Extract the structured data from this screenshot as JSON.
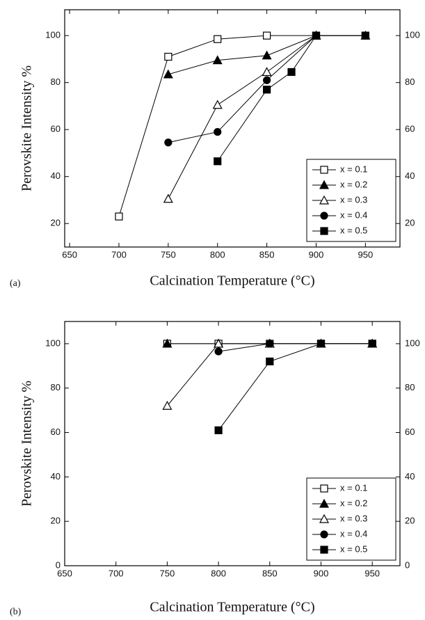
{
  "chart_data": [
    {
      "type": "line",
      "panel_label": "(a)",
      "x_label": "Calcination Temperature (°C)",
      "y_label": "Perovskite Intensity %",
      "xlim": [
        645,
        985
      ],
      "xticks": [
        650,
        700,
        750,
        800,
        850,
        900,
        950
      ],
      "ylim": [
        10,
        111
      ],
      "yticks": [
        20,
        40,
        60,
        80,
        100
      ],
      "y2lim": [
        10,
        111
      ],
      "y2ticks": [
        20,
        40,
        60,
        80,
        100
      ],
      "legend": "lower right",
      "series": [
        {
          "name": "x = 0.1",
          "color": "#000000",
          "marker": "square-open",
          "x": [
            700,
            750,
            800,
            850,
            900,
            950
          ],
          "values": [
            23,
            91,
            98.5,
            100,
            100,
            100
          ]
        },
        {
          "name": "x = 0.2",
          "color": "#000000",
          "marker": "triangle-filled",
          "x": [
            750,
            800,
            850,
            900,
            950
          ],
          "values": [
            83.5,
            89.5,
            91.5,
            100,
            100
          ]
        },
        {
          "name": "x = 0.3",
          "color": "#000000",
          "marker": "triangle-open",
          "x": [
            750,
            800,
            850,
            900
          ],
          "values": [
            30.5,
            70.5,
            84.5,
            100
          ]
        },
        {
          "name": "x = 0.4",
          "color": "#000000",
          "marker": "circle-filled",
          "x": [
            750,
            800,
            850,
            900,
            950
          ],
          "values": [
            54.5,
            59,
            81,
            100,
            100
          ]
        },
        {
          "name": "x = 0.5",
          "color": "#000000",
          "marker": "square-filled",
          "x": [
            800,
            850,
            875,
            900,
            950
          ],
          "values": [
            46.5,
            77,
            84.5,
            100,
            100
          ]
        }
      ]
    },
    {
      "type": "line",
      "panel_label": "(b)",
      "x_label": "Calcination Temperature (°C)",
      "y_label": "Perovskite Intensity %",
      "xlim": [
        650,
        977
      ],
      "xticks": [
        650,
        700,
        750,
        800,
        850,
        900,
        950
      ],
      "ylim": [
        0,
        110
      ],
      "yticks": [
        0,
        20,
        40,
        60,
        80,
        100
      ],
      "y2lim": [
        0,
        110
      ],
      "y2ticks": [
        0,
        20,
        40,
        60,
        80,
        100
      ],
      "legend": "lower right",
      "series": [
        {
          "name": "x = 0.1",
          "color": "#000000",
          "marker": "square-open",
          "x": [
            750,
            800,
            850,
            900,
            950
          ],
          "values": [
            100,
            100,
            100,
            100,
            100
          ]
        },
        {
          "name": "x = 0.2",
          "color": "#000000",
          "marker": "triangle-filled",
          "x": [
            750,
            800,
            850,
            900,
            950
          ],
          "values": [
            100,
            100,
            100,
            100,
            100
          ]
        },
        {
          "name": "x = 0.3",
          "color": "#000000",
          "marker": "triangle-open",
          "x": [
            750,
            800,
            850,
            900,
            950
          ],
          "values": [
            72,
            100,
            100,
            100,
            100
          ]
        },
        {
          "name": "x = 0.4",
          "color": "#000000",
          "marker": "circle-filled",
          "x": [
            800,
            850,
            900,
            950
          ],
          "values": [
            96.5,
            100,
            100,
            100
          ]
        },
        {
          "name": "x = 0.5",
          "color": "#000000",
          "marker": "square-filled",
          "x": [
            800,
            850,
            900,
            950
          ],
          "values": [
            61,
            92,
            100,
            100
          ]
        }
      ]
    }
  ]
}
